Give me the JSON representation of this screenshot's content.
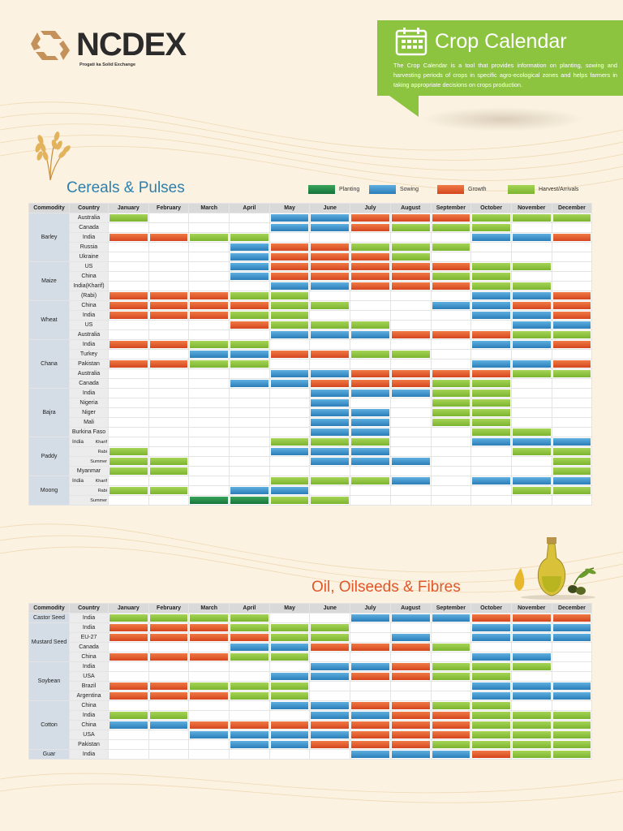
{
  "brand": {
    "name": "NCDEX",
    "tagline": "Progati ka Solid Exchange",
    "color": "#c4915a"
  },
  "crop_calendar": {
    "title": "Crop Calendar",
    "description": "The Crop Calendar is a tool that provides information on planting, sowing and harvesting periods of crops in specific agro-ecological zones and helps farmers in taking appropriate decisions on crops production.",
    "accent": "#8cc43f"
  },
  "legend": [
    {
      "code": "P",
      "label": "Planting",
      "color": "#1f8a45"
    },
    {
      "code": "S",
      "label": "Sowing",
      "color": "#3b8fc9"
    },
    {
      "code": "G",
      "label": "Growth",
      "color": "#e35a2c"
    },
    {
      "code": "H",
      "label": "Harvest/Arrivals",
      "color": "#8cc63f"
    }
  ],
  "headers": {
    "commodity": "Commodity",
    "country": "Country",
    "months": [
      "January",
      "February",
      "March",
      "April",
      "May",
      "June",
      "July",
      "August",
      "September",
      "October",
      "November",
      "December"
    ]
  },
  "sections": [
    {
      "title": "Cereals & Pulses",
      "groups": [
        {
          "commodity": "Barley",
          "rows": [
            {
              "country": "Australia",
              "m": "H...SSGGGHHH"
            },
            {
              "country": "Canada",
              "m": "....SSGHHH.."
            },
            {
              "country": "India",
              "m": "GGHH.....SSG"
            },
            {
              "country": "Russia",
              "m": "...SGGHHH..."
            },
            {
              "country": "Ukraine",
              "m": "...SGGGH...."
            }
          ]
        },
        {
          "commodity": "Maize",
          "rows": [
            {
              "country": "US",
              "m": "...SGGGGGHH."
            },
            {
              "country": "China",
              "m": "...SGGGGHH.."
            },
            {
              "country": "India(Kharif)",
              "m": "....SSGGGHH."
            },
            {
              "country": "(Rabi)",
              "m": "GGGHH....SSG"
            }
          ]
        },
        {
          "commodity": "Wheat",
          "rows": [
            {
              "country": "China",
              "m": "GGGGHH..SSGG"
            },
            {
              "country": "India",
              "m": "GGGHH....SSG"
            },
            {
              "country": "US",
              "m": "...GHHH...SS"
            },
            {
              "country": "Australia",
              "m": "....SSSGGGHH"
            }
          ]
        },
        {
          "commodity": "Chana",
          "rows": [
            {
              "country": "India",
              "m": "GGHH.....SSG"
            },
            {
              "country": "Turkey",
              "m": "..SSGGHH...."
            },
            {
              "country": "Pakistan",
              "m": "GGHH.....SSG"
            },
            {
              "country": "Australia",
              "m": "....SSGGGGHH"
            },
            {
              "country": "Canada",
              "m": "...SSGGGHH.."
            }
          ]
        },
        {
          "commodity": "Bajra",
          "rows": [
            {
              "country": "India",
              "m": ".....SSSHH.."
            },
            {
              "country": "Nigeria",
              "m": ".....S..HH.."
            },
            {
              "country": "Niger",
              "m": ".....SS.HH.."
            },
            {
              "country": "Mali",
              "m": ".....SS.HH.."
            },
            {
              "country": "Burkina Faso",
              "m": ".....SS..HH."
            }
          ]
        },
        {
          "commodity": "Paddy",
          "rows": [
            {
              "country": "India",
              "sub": "Kharif",
              "m": "....HHH..SSS"
            },
            {
              "country": "",
              "sub": "Rabi",
              "m": "H...SSS...HH"
            },
            {
              "country": "",
              "sub": "Summer",
              "m": "HH...SSS...H"
            },
            {
              "country": "Myanmar",
              "sub": "",
              "m": "HH.........H"
            }
          ]
        },
        {
          "commodity": "Moong",
          "rows": [
            {
              "country": "India",
              "sub": "Kharif",
              "m": "....HHHS.SSS"
            },
            {
              "country": "",
              "sub": "Rabi",
              "m": "HH.SS.....HH"
            },
            {
              "country": "",
              "sub": "Summer",
              "m": "..PPHH......"
            }
          ]
        }
      ]
    },
    {
      "title": "Oil, Oilseeds & Fibres",
      "groups": [
        {
          "commodity": "Castor Seed",
          "rows": [
            {
              "country": "India",
              "m": "HHHH..SSSGGG"
            }
          ]
        },
        {
          "commodity": "Mustard Seed",
          "rows": [
            {
              "country": "India",
              "m": "GGGHHH...SSS"
            },
            {
              "country": "EU-27",
              "m": "GGGGHH.S.SSS"
            },
            {
              "country": "Canada",
              "m": "...SSGGGH..."
            },
            {
              "country": "China",
              "m": "GGGHH....SS."
            }
          ]
        },
        {
          "commodity": "Soybean",
          "rows": [
            {
              "country": "India",
              "m": ".....SSGHHH."
            },
            {
              "country": "USA",
              "m": "....SSGGHH.."
            },
            {
              "country": "Brazil",
              "m": "GGHHH....SSS"
            },
            {
              "country": "Argentina",
              "m": "GGGHH....SSS"
            }
          ]
        },
        {
          "commodity": "Cotton",
          "rows": [
            {
              "country": "China",
              "m": "....SSGGHH.."
            },
            {
              "country": "India",
              "m": "HH...SSGGHHH"
            },
            {
              "country": "China",
              "m": "SSGGGGGGGHHH"
            },
            {
              "country": "USA",
              "m": "..SSSSGGGHHH"
            },
            {
              "country": "Pakistan",
              "m": "...SSGGGHHHH"
            }
          ]
        },
        {
          "commodity": "Guar",
          "rows": [
            {
              "country": "India",
              "m": "......SSSGHH"
            }
          ]
        }
      ]
    }
  ]
}
